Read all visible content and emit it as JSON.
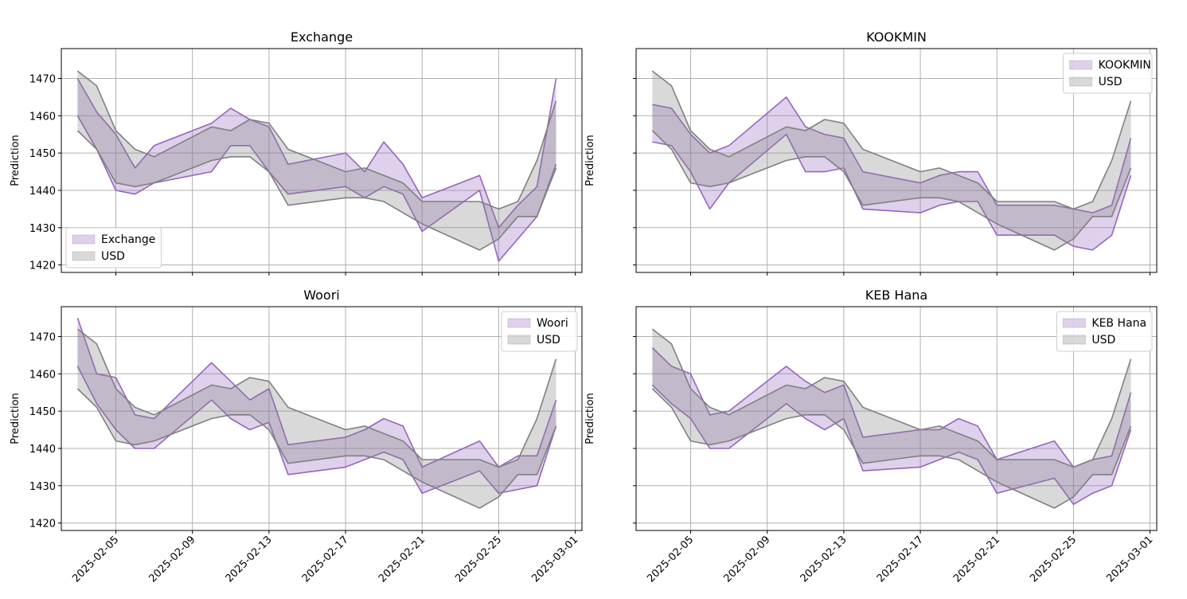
{
  "colors": {
    "purple": "#9467bd",
    "gray": "#808080"
  },
  "chart_data": [
    {
      "type": "area",
      "title": "Exchange",
      "ylabel": "Prediction",
      "ylim": [
        1418,
        1478
      ],
      "yticks": [
        1420,
        1430,
        1440,
        1450,
        1460,
        1470
      ],
      "xticks": [
        "2025-02-05",
        "2025-02-09",
        "2025-02-13",
        "2025-02-17",
        "2025-02-21",
        "2025-02-25",
        "2025-03-01"
      ],
      "x": [
        "2025-02-03",
        "2025-02-04",
        "2025-02-05",
        "2025-02-06",
        "2025-02-07",
        "2025-02-10",
        "2025-02-11",
        "2025-02-12",
        "2025-02-13",
        "2025-02-14",
        "2025-02-17",
        "2025-02-18",
        "2025-02-19",
        "2025-02-20",
        "2025-02-21",
        "2025-02-24",
        "2025-02-25",
        "2025-02-26",
        "2025-02-27",
        "2025-02-28"
      ],
      "legend": "bottom-left",
      "grid": true,
      "series": [
        {
          "name": "Exchange",
          "color": "#9467bd",
          "upper": [
            1470,
            1461,
            1455,
            1446,
            1452,
            1458,
            1462,
            1459,
            1457,
            1447,
            1450,
            1445,
            1453,
            1447,
            1438,
            1444,
            1430,
            1436,
            1441,
            1470
          ],
          "lower": [
            1460,
            1451,
            1440,
            1439,
            1442,
            1445,
            1452,
            1452,
            1445,
            1439,
            1441,
            1438,
            1441,
            1439,
            1429,
            1440,
            1421,
            1427,
            1433,
            1447
          ]
        },
        {
          "name": "USD",
          "color": "#808080",
          "upper": [
            1472,
            1468,
            1456,
            1451,
            1449,
            1457,
            1456,
            1459,
            1458,
            1451,
            1445,
            1446,
            1444,
            1442,
            1437,
            1437,
            1435,
            1437,
            1448,
            1464
          ],
          "lower": [
            1456,
            1451,
            1442,
            1441,
            1442,
            1448,
            1449,
            1449,
            1445,
            1436,
            1438,
            1438,
            1437,
            1434,
            1431,
            1424,
            1427,
            1433,
            1433,
            1446
          ]
        }
      ]
    },
    {
      "type": "area",
      "title": "KOOKMIN",
      "ylabel": "Prediction",
      "ylim": [
        1418,
        1478
      ],
      "yticks": [
        1420,
        1430,
        1440,
        1450,
        1460,
        1470
      ],
      "xticks": [
        "2025-02-05",
        "2025-02-09",
        "2025-02-13",
        "2025-02-17",
        "2025-02-21",
        "2025-02-25",
        "2025-03-01"
      ],
      "x": [
        "2025-02-03",
        "2025-02-04",
        "2025-02-05",
        "2025-02-06",
        "2025-02-07",
        "2025-02-10",
        "2025-02-11",
        "2025-02-12",
        "2025-02-13",
        "2025-02-14",
        "2025-02-17",
        "2025-02-18",
        "2025-02-19",
        "2025-02-20",
        "2025-02-21",
        "2025-02-24",
        "2025-02-25",
        "2025-02-26",
        "2025-02-27",
        "2025-02-28"
      ],
      "legend": "top-right",
      "grid": true,
      "series": [
        {
          "name": "KOOKMIN",
          "color": "#9467bd",
          "upper": [
            1463,
            1462,
            1455,
            1450,
            1452,
            1465,
            1457,
            1455,
            1454,
            1445,
            1442,
            1444,
            1445,
            1445,
            1436,
            1436,
            1435,
            1434,
            1436,
            1454
          ],
          "lower": [
            1453,
            1452,
            1445,
            1435,
            1442,
            1455,
            1445,
            1445,
            1446,
            1435,
            1434,
            1436,
            1437,
            1437,
            1428,
            1428,
            1425,
            1424,
            1428,
            1444
          ]
        },
        {
          "name": "USD",
          "color": "#808080",
          "upper": [
            1472,
            1468,
            1456,
            1451,
            1449,
            1457,
            1456,
            1459,
            1458,
            1451,
            1445,
            1446,
            1444,
            1442,
            1437,
            1437,
            1435,
            1437,
            1448,
            1464
          ],
          "lower": [
            1456,
            1451,
            1442,
            1441,
            1442,
            1448,
            1449,
            1449,
            1445,
            1436,
            1438,
            1438,
            1437,
            1434,
            1431,
            1424,
            1427,
            1433,
            1433,
            1446
          ]
        }
      ]
    },
    {
      "type": "area",
      "title": "Woori",
      "ylabel": "Prediction",
      "ylim": [
        1418,
        1478
      ],
      "yticks": [
        1420,
        1430,
        1440,
        1450,
        1460,
        1470
      ],
      "xticks": [
        "2025-02-05",
        "2025-02-09",
        "2025-02-13",
        "2025-02-17",
        "2025-02-21",
        "2025-02-25",
        "2025-03-01"
      ],
      "x": [
        "2025-02-03",
        "2025-02-04",
        "2025-02-05",
        "2025-02-06",
        "2025-02-07",
        "2025-02-10",
        "2025-02-11",
        "2025-02-12",
        "2025-02-13",
        "2025-02-14",
        "2025-02-17",
        "2025-02-18",
        "2025-02-19",
        "2025-02-20",
        "2025-02-21",
        "2025-02-24",
        "2025-02-25",
        "2025-02-26",
        "2025-02-27",
        "2025-02-28"
      ],
      "legend": "top-right",
      "grid": true,
      "series": [
        {
          "name": "Woori",
          "color": "#9467bd",
          "upper": [
            1475,
            1460,
            1459,
            1449,
            1448,
            1463,
            1458,
            1453,
            1456,
            1441,
            1443,
            1445,
            1448,
            1446,
            1435,
            1442,
            1435,
            1438,
            1438,
            1453
          ],
          "lower": [
            1462,
            1452,
            1445,
            1440,
            1440,
            1453,
            1448,
            1445,
            1447,
            1433,
            1435,
            1437,
            1439,
            1437,
            1428,
            1434,
            1428,
            1429,
            1430,
            1446
          ]
        },
        {
          "name": "USD",
          "color": "#808080",
          "upper": [
            1472,
            1468,
            1456,
            1451,
            1449,
            1457,
            1456,
            1459,
            1458,
            1451,
            1445,
            1446,
            1444,
            1442,
            1437,
            1437,
            1435,
            1437,
            1448,
            1464
          ],
          "lower": [
            1456,
            1451,
            1442,
            1441,
            1442,
            1448,
            1449,
            1449,
            1445,
            1436,
            1438,
            1438,
            1437,
            1434,
            1431,
            1424,
            1427,
            1433,
            1433,
            1446
          ]
        }
      ]
    },
    {
      "type": "area",
      "title": "KEB Hana",
      "ylabel": "Prediction",
      "ylim": [
        1418,
        1478
      ],
      "yticks": [
        1420,
        1430,
        1440,
        1450,
        1460,
        1470
      ],
      "xticks": [
        "2025-02-05",
        "2025-02-09",
        "2025-02-13",
        "2025-02-17",
        "2025-02-21",
        "2025-02-25",
        "2025-03-01"
      ],
      "x": [
        "2025-02-03",
        "2025-02-04",
        "2025-02-05",
        "2025-02-06",
        "2025-02-07",
        "2025-02-10",
        "2025-02-11",
        "2025-02-12",
        "2025-02-13",
        "2025-02-14",
        "2025-02-17",
        "2025-02-18",
        "2025-02-19",
        "2025-02-20",
        "2025-02-21",
        "2025-02-24",
        "2025-02-25",
        "2025-02-26",
        "2025-02-27",
        "2025-02-28"
      ],
      "legend": "top-right",
      "grid": true,
      "series": [
        {
          "name": "KEB Hana",
          "color": "#9467bd",
          "upper": [
            1467,
            1462,
            1460,
            1449,
            1450,
            1462,
            1458,
            1455,
            1457,
            1443,
            1445,
            1445,
            1448,
            1446,
            1437,
            1442,
            1435,
            1437,
            1438,
            1455
          ],
          "lower": [
            1457,
            1452,
            1448,
            1440,
            1440,
            1452,
            1448,
            1445,
            1448,
            1434,
            1435,
            1437,
            1439,
            1437,
            1428,
            1432,
            1425,
            1428,
            1430,
            1445
          ]
        },
        {
          "name": "USD",
          "color": "#808080",
          "upper": [
            1472,
            1468,
            1456,
            1451,
            1449,
            1457,
            1456,
            1459,
            1458,
            1451,
            1445,
            1446,
            1444,
            1442,
            1437,
            1437,
            1435,
            1437,
            1448,
            1464
          ],
          "lower": [
            1456,
            1451,
            1442,
            1441,
            1442,
            1448,
            1449,
            1449,
            1445,
            1436,
            1438,
            1438,
            1437,
            1434,
            1431,
            1424,
            1427,
            1433,
            1433,
            1446
          ]
        }
      ]
    }
  ]
}
